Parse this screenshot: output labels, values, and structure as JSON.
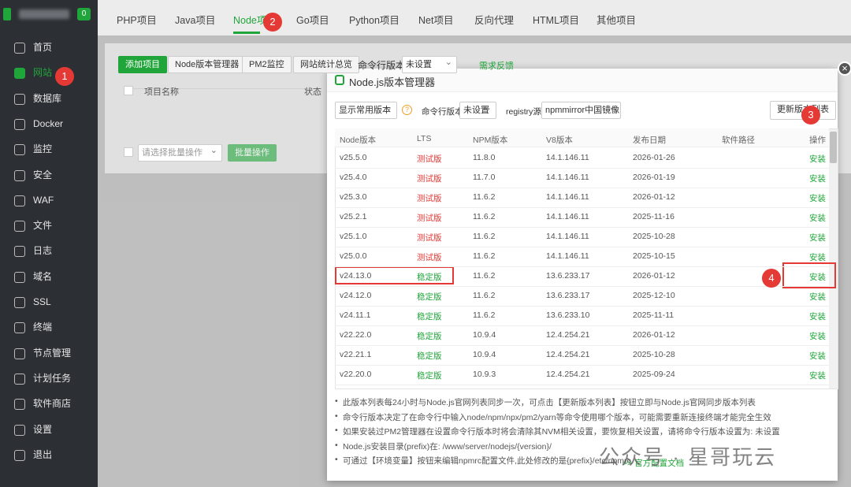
{
  "sidebar": {
    "badge": "0",
    "menu": [
      "首页",
      "网站",
      "数据库",
      "Docker",
      "监控",
      "安全",
      "WAF",
      "文件",
      "日志",
      "域名",
      "SSL",
      "终端",
      "节点管理",
      "计划任务",
      "软件商店",
      "设置",
      "退出"
    ]
  },
  "tabs": [
    "PHP项目",
    "Java项目",
    "Node项目",
    "Go项目",
    "Python项目",
    "Net项目",
    "反向代理",
    "HTML项目",
    "其他项目"
  ],
  "toolbar": {
    "buttons": [
      "添加项目",
      "Node版本管理器",
      "PM2监控",
      "网站统计总览"
    ],
    "cli_label": "命令行版本",
    "cli_select": "未设置",
    "feedback": "需求反馈"
  },
  "project_table": {
    "headers": [
      "项目名称",
      "状态"
    ],
    "batch_select": "请选择批量操作",
    "batch_button": "批量操作"
  },
  "modal": {
    "title": "Node.js版本管理器",
    "filters": {
      "version_select": "显示常用版本",
      "help": "?",
      "cli_label": "命令行版本",
      "cli_select": "未设置",
      "registry_label": "registry源",
      "registry_select": "npmmirror中国镜像",
      "update_button": "更新版本列表"
    },
    "table": {
      "headers": [
        "Node版本",
        "LTS",
        "NPM版本",
        "V8版本",
        "发布日期",
        "软件路径",
        "操作"
      ],
      "rows": [
        {
          "version": "v25.5.0",
          "lts": "测试版",
          "lts_color": "#e53935",
          "npm": "11.8.0",
          "v8": "14.1.146.11",
          "date": "2026-01-26",
          "action": "安装"
        },
        {
          "version": "v25.4.0",
          "lts": "测试版",
          "lts_color": "#e53935",
          "npm": "11.7.0",
          "v8": "14.1.146.11",
          "date": "2026-01-19",
          "action": "安装"
        },
        {
          "version": "v25.3.0",
          "lts": "测试版",
          "lts_color": "#e53935",
          "npm": "11.6.2",
          "v8": "14.1.146.11",
          "date": "2026-01-12",
          "action": "安装"
        },
        {
          "version": "v25.2.1",
          "lts": "测试版",
          "lts_color": "#e53935",
          "npm": "11.6.2",
          "v8": "14.1.146.11",
          "date": "2025-11-16",
          "action": "安装"
        },
        {
          "version": "v25.1.0",
          "lts": "测试版",
          "lts_color": "#e53935",
          "npm": "11.6.2",
          "v8": "14.1.146.11",
          "date": "2025-10-28",
          "action": "安装"
        },
        {
          "version": "v25.0.0",
          "lts": "测试版",
          "lts_color": "#e53935",
          "npm": "11.6.2",
          "v8": "14.1.146.11",
          "date": "2025-10-15",
          "action": "安装"
        },
        {
          "version": "v24.13.0",
          "lts": "稳定版",
          "lts_color": "#20a53a",
          "npm": "11.6.2",
          "v8": "13.6.233.17",
          "date": "2026-01-12",
          "action": "安装"
        },
        {
          "version": "v24.12.0",
          "lts": "稳定版",
          "lts_color": "#20a53a",
          "npm": "11.6.2",
          "v8": "13.6.233.17",
          "date": "2025-12-10",
          "action": "安装"
        },
        {
          "version": "v24.11.1",
          "lts": "稳定版",
          "lts_color": "#20a53a",
          "npm": "11.6.2",
          "v8": "13.6.233.10",
          "date": "2025-11-11",
          "action": "安装"
        },
        {
          "version": "v22.22.0",
          "lts": "稳定版",
          "lts_color": "#20a53a",
          "npm": "10.9.4",
          "v8": "12.4.254.21",
          "date": "2026-01-12",
          "action": "安装"
        },
        {
          "version": "v22.21.1",
          "lts": "稳定版",
          "lts_color": "#20a53a",
          "npm": "10.9.4",
          "v8": "12.4.254.21",
          "date": "2025-10-28",
          "action": "安装"
        },
        {
          "version": "v22.20.0",
          "lts": "稳定版",
          "lts_color": "#20a53a",
          "npm": "10.9.3",
          "v8": "12.4.254.21",
          "date": "2025-09-24",
          "action": "安装"
        }
      ]
    },
    "notes": [
      "此版本列表每24小时与Node.js官网列表同步一次，可点击【更新版本列表】按钮立即与Node.js官网同步版本列表",
      "命令行版本决定了在命令行中输入node/npm/npx/pm2/yarn等命令使用哪个版本，可能需要重新连接终端才能完全生效",
      "如果安装过PM2管理器在设置命令行版本时将会清除其NVM相关设置，要恢复相关设置，请将命令行版本设置为: 未设置",
      "Node.js安装目录(prefix)在: /www/server/nodejs/{version}/",
      "可通过【环境变量】按钮来编辑npmrc配置文件,此处修改的是{prefix}/etc/npmrc"
    ],
    "doc_link": ">> 官方配置文档"
  },
  "annotations": [
    "1",
    "2",
    "3",
    "4"
  ],
  "watermark": "公众号 · 星哥玩云"
}
